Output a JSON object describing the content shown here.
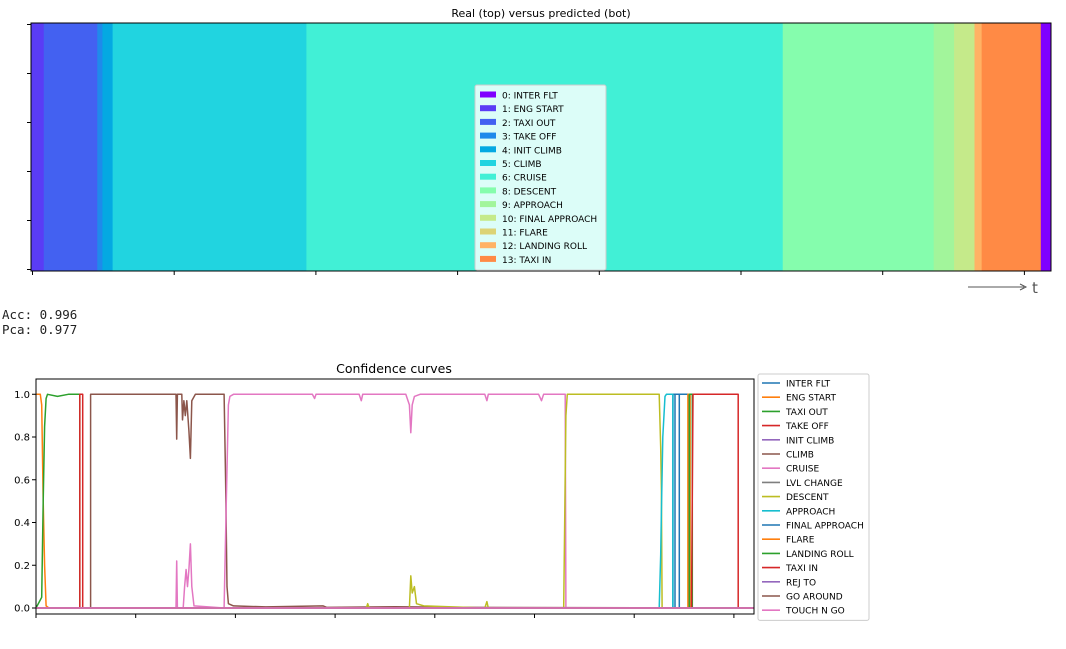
{
  "metrics": {
    "acc_label": "Acc:",
    "acc_value": "0.996",
    "pca_label": "Pca:",
    "pca_value": "0.977"
  },
  "chart_data": [
    {
      "type": "bar",
      "title": "Real (top) versus predicted (bot)",
      "xaxis_symbol": "t",
      "grid": false,
      "legend_placement": "center",
      "classes": [
        {
          "id": 0,
          "label": "0: INTER FLT",
          "color": "#7f00ff"
        },
        {
          "id": 1,
          "label": "1: ENG START",
          "color": "#5a3cf5"
        },
        {
          "id": 2,
          "label": "2: TAXI OUT",
          "color": "#4361f1"
        },
        {
          "id": 3,
          "label": "3: TAKE OFF",
          "color": "#1f8aeb"
        },
        {
          "id": 4,
          "label": "4: INIT CLIMB",
          "color": "#04a9e2"
        },
        {
          "id": 5,
          "label": "5: CLIMB",
          "color": "#21d4e0"
        },
        {
          "id": 6,
          "label": "6: CRUISE",
          "color": "#41f0d6"
        },
        {
          "id": 8,
          "label": "8: DESCENT",
          "color": "#85fdad"
        },
        {
          "id": 9,
          "label": "9: APPROACH",
          "color": "#a2f59b"
        },
        {
          "id": 10,
          "label": "10: FINAL APPROACH",
          "color": "#c5ea8a"
        },
        {
          "id": 11,
          "label": "11: FLARE",
          "color": "#dcd375"
        },
        {
          "id": 12,
          "label": "12: LANDING ROLL",
          "color": "#ffb264"
        },
        {
          "id": 13,
          "label": "13: TAXI IN",
          "color": "#ff8a45"
        }
      ],
      "segments": [
        {
          "cls": 1,
          "start": 0.0,
          "end": 1.25
        },
        {
          "cls": 2,
          "start": 1.25,
          "end": 6.5
        },
        {
          "cls": 3,
          "start": 6.5,
          "end": 7.0
        },
        {
          "cls": 4,
          "start": 7.0,
          "end": 8.0
        },
        {
          "cls": 5,
          "start": 8.0,
          "end": 27.0
        },
        {
          "cls": 6,
          "start": 27.0,
          "end": 73.7
        },
        {
          "cls": 8,
          "start": 73.7,
          "end": 88.5
        },
        {
          "cls": 9,
          "start": 88.5,
          "end": 90.5
        },
        {
          "cls": 10,
          "start": 90.5,
          "end": 92.5
        },
        {
          "cls": 12,
          "start": 92.5,
          "end": 93.2
        },
        {
          "cls": 13,
          "start": 93.2,
          "end": 99.0
        },
        {
          "cls": 0,
          "start": 99.0,
          "end": 100.0
        }
      ],
      "xlim": [
        0,
        100
      ]
    },
    {
      "type": "line",
      "title": "Confidence curves",
      "ylim": [
        0.0,
        1.05
      ],
      "xlim": [
        0,
        100
      ],
      "yticks": [
        0.0,
        0.2,
        0.4,
        0.6,
        0.8,
        1.0
      ],
      "ytick_labels": [
        "0.0",
        "0.2",
        "0.4",
        "0.6",
        "0.8",
        "1.0"
      ],
      "grid": false,
      "legend_placement": "outside-right",
      "series": [
        {
          "name": "INTER FLT",
          "color": "#1f77b4",
          "points": [
            [
              0,
              0
            ],
            [
              88.7,
              0
            ],
            [
              88.7,
              1
            ],
            [
              89.6,
              1
            ],
            [
              89.6,
              0
            ],
            [
              100,
              0
            ]
          ]
        },
        {
          "name": "ENG START",
          "color": "#ff7f0e",
          "points": [
            [
              0,
              1
            ],
            [
              0.6,
              1
            ],
            [
              0.8,
              0.95
            ],
            [
              1.0,
              0.5
            ],
            [
              1.2,
              0.2
            ],
            [
              1.4,
              0.01
            ],
            [
              1.8,
              0
            ],
            [
              100,
              0
            ]
          ]
        },
        {
          "name": "TAXI OUT",
          "color": "#2ca02c",
          "points": [
            [
              0,
              0
            ],
            [
              0.8,
              0.05
            ],
            [
              1.0,
              0.5
            ],
            [
              1.2,
              0.85
            ],
            [
              1.4,
              0.98
            ],
            [
              1.6,
              1
            ],
            [
              3.0,
              0.99
            ],
            [
              4.5,
              1
            ],
            [
              6.1,
              1
            ],
            [
              6.1,
              0
            ],
            [
              100,
              0
            ]
          ]
        },
        {
          "name": "TAKE OFF",
          "color": "#d62728",
          "points": [
            [
              0,
              0
            ],
            [
              6.1,
              0
            ],
            [
              6.1,
              1
            ],
            [
              6.5,
              1
            ],
            [
              6.5,
              0
            ],
            [
              100,
              0
            ]
          ]
        },
        {
          "name": "INIT CLIMB",
          "color": "#9467bd",
          "points": [
            [
              0,
              0
            ],
            [
              100,
              0
            ]
          ]
        },
        {
          "name": "CLIMB",
          "color": "#8c564b",
          "points": [
            [
              0,
              0
            ],
            [
              7.6,
              0
            ],
            [
              7.6,
              1
            ],
            [
              19.5,
              1
            ],
            [
              19.6,
              0.79
            ],
            [
              19.7,
              1
            ],
            [
              20.3,
              1
            ],
            [
              20.4,
              0.88
            ],
            [
              20.6,
              0.97
            ],
            [
              20.8,
              0.9
            ],
            [
              21.0,
              0.97
            ],
            [
              21.3,
              0.83
            ],
            [
              21.5,
              0.7
            ],
            [
              21.7,
              0.97
            ],
            [
              22.2,
              1
            ],
            [
              26.2,
              1
            ],
            [
              26.4,
              0.6
            ],
            [
              26.6,
              0.1
            ],
            [
              26.8,
              0.02
            ],
            [
              27.5,
              0.01
            ],
            [
              32,
              0.005
            ],
            [
              40,
              0.01
            ],
            [
              40.5,
              0.003
            ],
            [
              50,
              0.006
            ],
            [
              60,
              0.003
            ],
            [
              100,
              0
            ]
          ]
        },
        {
          "name": "CRUISE",
          "color": "#e377c2",
          "points": [
            [
              0,
              0
            ],
            [
              19.5,
              0
            ],
            [
              19.6,
              0.22
            ],
            [
              19.7,
              0
            ],
            [
              20.5,
              0
            ],
            [
              20.7,
              0.1
            ],
            [
              20.9,
              0.18
            ],
            [
              21.1,
              0.1
            ],
            [
              21.3,
              0.18
            ],
            [
              21.5,
              0.3
            ],
            [
              21.7,
              0.1
            ],
            [
              22.0,
              0.01
            ],
            [
              26.2,
              0
            ],
            [
              26.5,
              0.5
            ],
            [
              26.8,
              0.95
            ],
            [
              27.0,
              0.99
            ],
            [
              27.5,
              1
            ],
            [
              38.5,
              1
            ],
            [
              38.8,
              0.98
            ],
            [
              39.0,
              1
            ],
            [
              45.0,
              1
            ],
            [
              45.3,
              0.97
            ],
            [
              45.5,
              1
            ],
            [
              51.5,
              1
            ],
            [
              52.0,
              0.95
            ],
            [
              52.2,
              0.82
            ],
            [
              52.4,
              0.95
            ],
            [
              52.7,
              0.99
            ],
            [
              53.5,
              1
            ],
            [
              62.5,
              1
            ],
            [
              62.8,
              0.97
            ],
            [
              63.0,
              1
            ],
            [
              70.0,
              1
            ],
            [
              70.4,
              0.97
            ],
            [
              70.7,
              1
            ],
            [
              73.7,
              1
            ],
            [
              73.8,
              0
            ],
            [
              100,
              0
            ]
          ]
        },
        {
          "name": "LVL CHANGE",
          "color": "#7f7f7f",
          "points": [
            [
              0,
              0
            ],
            [
              100,
              0
            ]
          ]
        },
        {
          "name": "DESCENT",
          "color": "#bcbd22",
          "points": [
            [
              0,
              0
            ],
            [
              46.0,
              0
            ],
            [
              46.2,
              0.02
            ],
            [
              46.4,
              0
            ],
            [
              52.0,
              0
            ],
            [
              52.2,
              0.15
            ],
            [
              52.4,
              0.07
            ],
            [
              52.7,
              0.1
            ],
            [
              53.0,
              0.02
            ],
            [
              54,
              0.01
            ],
            [
              62.5,
              0
            ],
            [
              62.8,
              0.03
            ],
            [
              63.0,
              0
            ],
            [
              73.5,
              0
            ],
            [
              73.8,
              0.9
            ],
            [
              74.0,
              1
            ],
            [
              86.8,
              1
            ],
            [
              87.0,
              0.75
            ],
            [
              87.1,
              0.55
            ],
            [
              87.2,
              0
            ],
            [
              100,
              0
            ]
          ]
        },
        {
          "name": "APPROACH",
          "color": "#17becf",
          "points": [
            [
              0,
              0
            ],
            [
              86.8,
              0
            ],
            [
              87.0,
              0.25
            ],
            [
              87.1,
              0.45
            ],
            [
              87.3,
              0.8
            ],
            [
              87.6,
              0.99
            ],
            [
              87.8,
              1
            ],
            [
              88.7,
              1
            ],
            [
              88.7,
              0
            ],
            [
              100,
              0
            ]
          ]
        },
        {
          "name": "FINAL APPROACH",
          "color": "#1f77b4",
          "points": [
            [
              0,
              0
            ],
            [
              89.0,
              0
            ],
            [
              89.0,
              1
            ],
            [
              90.9,
              1
            ],
            [
              90.9,
              0
            ],
            [
              100,
              0
            ]
          ]
        },
        {
          "name": "FLARE",
          "color": "#ff7f0e",
          "points": [
            [
              0,
              0
            ],
            [
              90.8,
              0
            ],
            [
              90.8,
              1
            ],
            [
              91.1,
              1
            ],
            [
              91.1,
              0
            ],
            [
              100,
              0
            ]
          ]
        },
        {
          "name": "LANDING ROLL",
          "color": "#2ca02c",
          "points": [
            [
              0,
              0
            ],
            [
              91.0,
              0
            ],
            [
              91.0,
              1
            ],
            [
              91.4,
              1
            ],
            [
              91.4,
              0
            ],
            [
              100,
              0
            ]
          ]
        },
        {
          "name": "TAXI IN",
          "color": "#d62728",
          "points": [
            [
              0,
              0
            ],
            [
              91.3,
              0
            ],
            [
              91.5,
              1
            ],
            [
              97.8,
              1
            ],
            [
              97.8,
              0
            ],
            [
              100,
              0
            ]
          ]
        },
        {
          "name": "REJ TO",
          "color": "#9467bd",
          "points": [
            [
              0,
              0
            ],
            [
              100,
              0
            ]
          ]
        },
        {
          "name": "GO AROUND",
          "color": "#8c564b",
          "points": [
            [
              0,
              0
            ],
            [
              100,
              0
            ]
          ]
        },
        {
          "name": "TOUCH N GO",
          "color": "#e377c2",
          "points": [
            [
              0,
              0
            ],
            [
              100,
              0
            ]
          ]
        }
      ]
    }
  ]
}
